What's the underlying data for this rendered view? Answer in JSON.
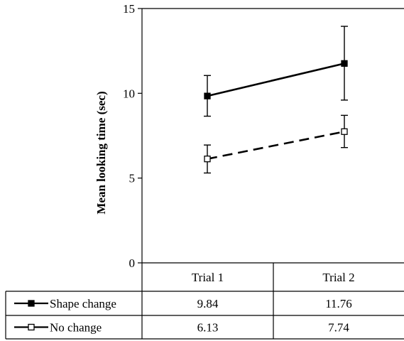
{
  "chart_data": {
    "type": "line",
    "ylabel": "Mean looking time (sec)",
    "ylim": [
      0,
      15
    ],
    "yticks": [
      0,
      5,
      10,
      15
    ],
    "categories": [
      "Trial 1",
      "Trial 2"
    ],
    "grid": false,
    "legend": "table-below",
    "series": [
      {
        "name": "Shape change",
        "marker": "filled-square",
        "line_style": "solid",
        "values": [
          9.84,
          11.76
        ],
        "error_low": [
          8.65,
          9.6
        ],
        "error_high": [
          11.05,
          13.95
        ],
        "table_values": [
          "9.84",
          "11.76"
        ]
      },
      {
        "name": "No change",
        "marker": "open-square",
        "line_style": "dashed",
        "values": [
          6.13,
          7.74
        ],
        "error_low": [
          5.3,
          6.8
        ],
        "error_high": [
          6.95,
          8.7
        ],
        "table_values": [
          "6.13",
          "7.74"
        ]
      }
    ]
  },
  "colors": {
    "ink": "#000000",
    "background": "#ffffff"
  }
}
